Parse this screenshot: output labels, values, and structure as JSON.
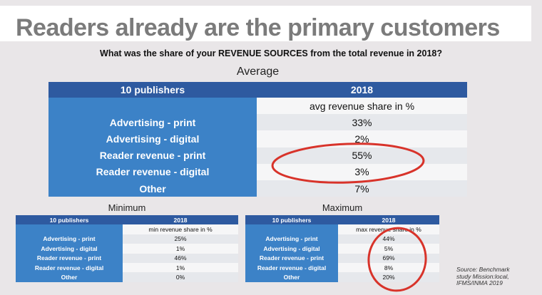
{
  "title": "Readers already are the primary customers",
  "question": "What was the share of your REVENUE SOURCES from the total revenue in 2018?",
  "average": {
    "label": "Average",
    "header": {
      "col1": "10 publishers",
      "col2": "2018"
    },
    "subheader": "avg revenue share in %",
    "rows": [
      {
        "label": "Advertising - print",
        "value": "33%"
      },
      {
        "label": "Advertising - digital",
        "value": "2%"
      },
      {
        "label": "Reader revenue - print",
        "value": "55%"
      },
      {
        "label": "Reader revenue - digital",
        "value": "3%"
      },
      {
        "label": "Other",
        "value": "7%"
      }
    ]
  },
  "minimum": {
    "label": "Minimum",
    "header": {
      "col1": "10 publishers",
      "col2": "2018"
    },
    "subheader": "min revenue share in %",
    "rows": [
      {
        "label": "Advertising - print",
        "value": "25%"
      },
      {
        "label": "Advertising - digital",
        "value": "1%"
      },
      {
        "label": "Reader revenue - print",
        "value": "46%"
      },
      {
        "label": "Reader revenue - digital",
        "value": "1%"
      },
      {
        "label": "Other",
        "value": "0%"
      }
    ]
  },
  "maximum": {
    "label": "Maximum",
    "header": {
      "col1": "10 publishers",
      "col2": "2018"
    },
    "subheader": "max revenue share in %",
    "rows": [
      {
        "label": "Advertising - print",
        "value": "44%"
      },
      {
        "label": "Advertising - digital",
        "value": "5%"
      },
      {
        "label": "Reader revenue - print",
        "value": "69%"
      },
      {
        "label": "Reader revenue - digital",
        "value": "8%"
      },
      {
        "label": "Other",
        "value": "20%"
      }
    ]
  },
  "source_lines": [
    "Source: Benchmark",
    "study Mission:local,",
    "IFMS/INMA 2019"
  ],
  "colors": {
    "header_blue": "#2e5aa0",
    "label_blue": "#3c82c7",
    "highlight_red": "#d8332a",
    "title_gray": "#7b7b7b"
  }
}
